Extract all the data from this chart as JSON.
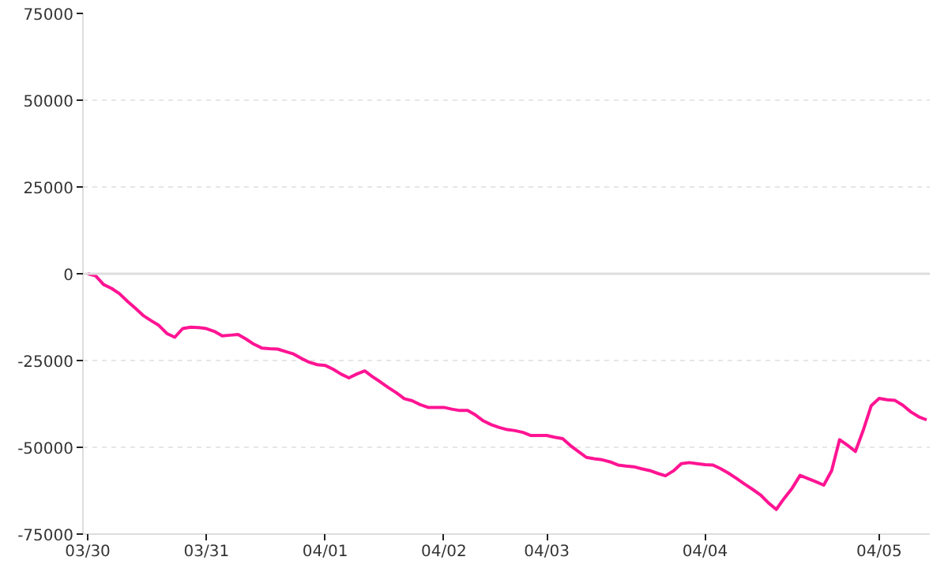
{
  "chart_data": {
    "type": "line",
    "categories": [
      "03/30",
      null,
      null,
      null,
      null,
      null,
      null,
      null,
      null,
      null,
      null,
      null,
      null,
      null,
      null,
      "03/31",
      null,
      null,
      null,
      null,
      null,
      null,
      null,
      null,
      null,
      null,
      null,
      null,
      null,
      null,
      "04/01",
      null,
      null,
      null,
      null,
      null,
      null,
      null,
      null,
      null,
      null,
      null,
      null,
      null,
      null,
      "04/02",
      null,
      null,
      null,
      null,
      null,
      null,
      null,
      null,
      null,
      null,
      null,
      null,
      "04/03",
      null,
      null,
      null,
      null,
      null,
      null,
      null,
      null,
      null,
      null,
      null,
      null,
      null,
      null,
      null,
      null,
      null,
      null,
      null,
      "04/04",
      null,
      null,
      null,
      null,
      null,
      null,
      null,
      null,
      null,
      null,
      null,
      null,
      null,
      null,
      null,
      null,
      null,
      null,
      null,
      null,
      null,
      "04/05",
      null,
      null,
      null,
      null,
      null,
      null
    ],
    "series": [
      {
        "color": "#ff1493",
        "values": [
          0,
          -600,
          -3100,
          -4200,
          -5700,
          -7900,
          -9900,
          -12000,
          -13500,
          -14900,
          -17200,
          -18300,
          -15800,
          -15400,
          -15500,
          -15800,
          -16600,
          -17900,
          -17700,
          -17500,
          -18800,
          -20300,
          -21400,
          -21600,
          -21700,
          -22400,
          -23100,
          -24400,
          -25500,
          -26200,
          -26400,
          -27500,
          -28900,
          -30000,
          -28900,
          -28000,
          -29700,
          -31200,
          -32800,
          -34300,
          -36000,
          -36600,
          -37700,
          -38500,
          -38500,
          -38500,
          -39000,
          -39400,
          -39400,
          -40700,
          -42400,
          -43500,
          -44300,
          -44900,
          -45200,
          -45700,
          -46600,
          -46600,
          -46600,
          -47100,
          -47500,
          -49500,
          -51200,
          -52900,
          -53300,
          -53600,
          -54200,
          -55100,
          -55400,
          -55600,
          -56200,
          -56700,
          -57500,
          -58200,
          -56800,
          -54700,
          -54400,
          -54700,
          -55000,
          -55100,
          -56200,
          -57500,
          -59000,
          -60600,
          -62100,
          -63700,
          -66000,
          -67900,
          -64700,
          -61800,
          -58100,
          -59000,
          -59900,
          -60900,
          -56700,
          -47800,
          -49400,
          -51200,
          -45000,
          -38000,
          -35900,
          -36300,
          -36500,
          -37900,
          -39800,
          -41200,
          -42100
        ]
      }
    ],
    "ylim": [
      -75000,
      75000
    ],
    "yticks": [
      -75000,
      -50000,
      -25000,
      0,
      25000,
      50000,
      75000
    ],
    "grid": "y",
    "marker": "none",
    "line_style": "solid",
    "ref_lines": [
      {
        "axis": "y",
        "value": 0,
        "color": "#dddddd"
      }
    ]
  }
}
